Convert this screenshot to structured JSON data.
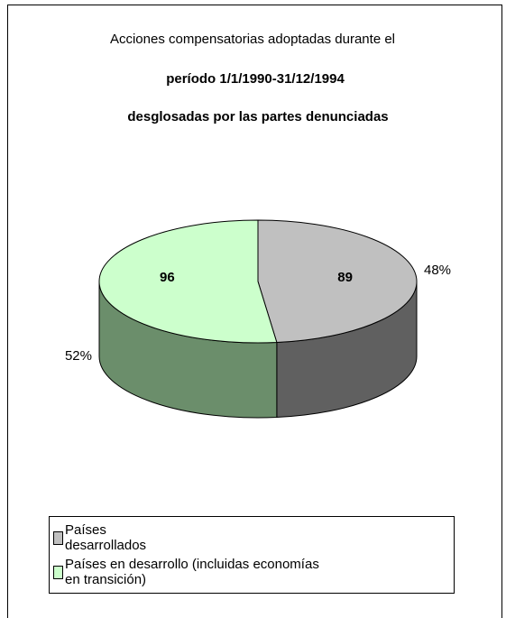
{
  "chart_data": {
    "type": "pie",
    "title": [
      "Acciones compensatorias adoptadas durante el",
      "período 1/1/1990-31/12/1994",
      "desglosadas por las partes denunciadas"
    ],
    "categories": [
      "Países desarrollados",
      "Países en desarrollo (incluidas economías en transición)"
    ],
    "values": [
      89,
      96
    ],
    "percent_values": [
      48,
      52
    ],
    "percent_labels": [
      "48%",
      "52%"
    ],
    "colors": [
      "#c0c0c0",
      "#ccffcc"
    ],
    "side_colors": [
      "#606060",
      "#6b8e6b"
    ],
    "legend": "bottom"
  }
}
